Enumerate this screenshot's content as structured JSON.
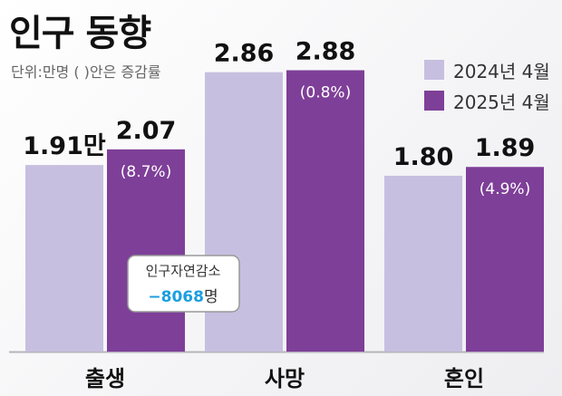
{
  "title": "인구 동향",
  "unit_note": "단위:만명 ( )안은 증감률",
  "colors": {
    "y2024": "#c7bfe0",
    "y2025": "#7e3f98",
    "axis": "#b5b5ba"
  },
  "chart_data": {
    "type": "bar",
    "categories": [
      "출생",
      "사망",
      "혼인"
    ],
    "ylim": [
      0,
      3.2
    ],
    "series": [
      {
        "name": "2024년 4월",
        "values": [
          1.91,
          2.86,
          1.8
        ],
        "labels": [
          "1.91만",
          "2.86",
          "1.80"
        ]
      },
      {
        "name": "2025년 4월",
        "values": [
          2.07,
          2.88,
          1.89
        ],
        "labels": [
          "2.07",
          "2.88",
          "1.89"
        ],
        "changes": [
          "(8.7%)",
          "(0.8%)",
          "(4.9%)"
        ]
      }
    ]
  },
  "callout": {
    "title": "인구자연감소",
    "value": "−8068",
    "unit": "명"
  }
}
